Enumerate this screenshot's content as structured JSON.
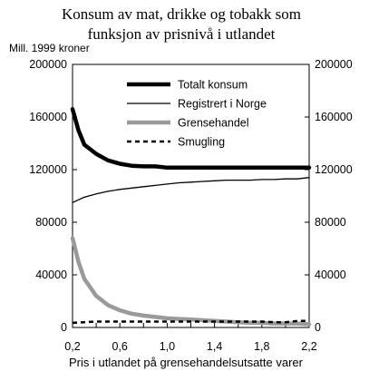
{
  "chart_data": {
    "type": "line",
    "title_lines": [
      "Konsum av mat, drikke og tobakk som",
      "funksjon av prisnivå i utlandet"
    ],
    "ylabel": "Mill. 1999 kroner",
    "xlabel": "Pris i utlandet på grensehandelsutsatte varer",
    "xlim": [
      0.2,
      2.2
    ],
    "ylim": [
      0,
      200000
    ],
    "x_ticks": [
      0.2,
      0.4,
      0.6,
      0.8,
      1.0,
      1.2,
      1.4,
      1.6,
      1.8,
      2.0,
      2.2
    ],
    "x_tick_labels": [
      "0,2",
      "0,4",
      "0,6",
      "0,8",
      "1,0",
      "1,2",
      "1,4",
      "1,6",
      "1,8",
      "2,0",
      "2,2"
    ],
    "y_ticks": [
      0,
      40000,
      80000,
      120000,
      160000,
      200000
    ],
    "y_tick_labels": [
      "0",
      "40000",
      "80000",
      "120000",
      "160000",
      "200000"
    ],
    "right_axis": true,
    "grid": false,
    "legend_position": "top-center",
    "x": [
      0.2,
      0.25,
      0.3,
      0.4,
      0.5,
      0.6,
      0.7,
      0.8,
      0.9,
      1.0,
      1.1,
      1.2,
      1.3,
      1.4,
      1.5,
      1.6,
      1.7,
      1.8,
      1.9,
      2.0,
      2.1,
      2.2
    ],
    "series": [
      {
        "name": "Totalt konsum",
        "color": "#000000",
        "style": "thick",
        "values": [
          166000,
          150000,
          139000,
          132000,
          127000,
          124500,
          123000,
          122500,
          122500,
          121500,
          121500,
          121500,
          121500,
          121500,
          121500,
          121500,
          121500,
          121500,
          121500,
          121500,
          121500,
          121500
        ]
      },
      {
        "name": "Registrert i Norge",
        "color": "#000000",
        "style": "thin",
        "values": [
          95000,
          97000,
          99000,
          101500,
          103500,
          105000,
          106000,
          107000,
          108000,
          109000,
          110000,
          110500,
          111000,
          111500,
          112000,
          112000,
          112000,
          112500,
          112500,
          113000,
          113000,
          114000
        ]
      },
      {
        "name": "Grensehandel",
        "color": "#9a9a9a",
        "style": "thick-gray",
        "values": [
          68000,
          50000,
          37000,
          24000,
          17000,
          13000,
          10500,
          9000,
          8000,
          7000,
          6500,
          6000,
          5500,
          5000,
          4500,
          4000,
          3500,
          3500,
          3000,
          3000,
          3000,
          2500
        ]
      },
      {
        "name": "Smugling",
        "color": "#000000",
        "style": "dashed",
        "values": [
          3500,
          3800,
          4000,
          4500,
          4500,
          4500,
          4500,
          4500,
          4500,
          4500,
          4500,
          4500,
          4500,
          4500,
          4500,
          4500,
          4500,
          4500,
          4000,
          4000,
          5000,
          5000
        ]
      }
    ]
  }
}
